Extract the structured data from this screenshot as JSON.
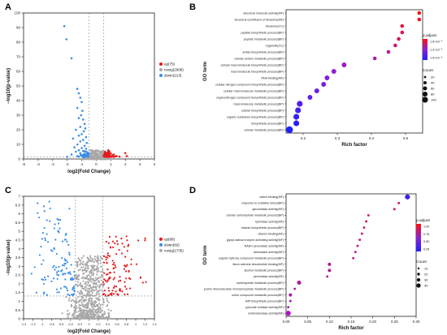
{
  "panels": [
    {
      "id": "A",
      "letter": "A"
    },
    {
      "id": "B",
      "letter": "B"
    },
    {
      "id": "C",
      "letter": "C"
    },
    {
      "id": "D",
      "letter": "D"
    }
  ],
  "colors": {
    "up": "#e41a1c",
    "down": "#3a8ee6",
    "nosig": "#a8a8a8",
    "gradient_high": "#ff1010",
    "gradient_mid": "#9020d0",
    "gradient_low": "#2020ff"
  },
  "chart_data": [
    {
      "panel": "A",
      "type": "scatter",
      "title": "",
      "xlabel": "log2(Fold Change)",
      "ylabel": "−log10(p-value)",
      "xlim": [
        -5,
        4
      ],
      "ylim": [
        0,
        100
      ],
      "xticks": [
        "-5",
        "-4",
        "-3",
        "-2",
        "-1",
        "0",
        "1",
        "2",
        "3",
        "4"
      ],
      "yticks": [
        "0",
        "10",
        "20",
        "30",
        "40",
        "50",
        "60",
        "70",
        "80",
        "90",
        "100"
      ],
      "threshold_x": [
        -0.5,
        0.5
      ],
      "threshold_y": 1.3,
      "legend": [
        {
          "label": "up(75)",
          "color": "#e41a1c"
        },
        {
          "label": "nosig(2698)",
          "color": "#a8a8a8"
        },
        {
          "label": "down(213)",
          "color": "#3a8ee6"
        }
      ],
      "points": [
        [
          -2.2,
          91
        ],
        [
          -2.05,
          82
        ],
        [
          -1.7,
          69
        ],
        [
          -1.3,
          48
        ],
        [
          -1.2,
          45
        ],
        [
          -1.1,
          42
        ],
        [
          -1.0,
          39
        ],
        [
          -1.3,
          35
        ],
        [
          -0.95,
          33
        ],
        [
          -1.05,
          30
        ],
        [
          -1.2,
          28
        ],
        [
          -0.9,
          27
        ],
        [
          -0.8,
          24
        ],
        [
          -1.1,
          22
        ],
        [
          -0.75,
          21
        ],
        [
          -1.4,
          20
        ],
        [
          -0.85,
          19
        ],
        [
          -1.0,
          17
        ],
        [
          -1.2,
          16
        ],
        [
          -0.7,
          15
        ],
        [
          -1.6,
          14
        ],
        [
          -0.9,
          13
        ],
        [
          -1.1,
          12
        ],
        [
          -0.65,
          11
        ],
        [
          -1.3,
          10
        ],
        [
          -0.8,
          9
        ],
        [
          -1.5,
          8
        ],
        [
          -1.0,
          7.5
        ],
        [
          -0.7,
          7
        ],
        [
          -1.2,
          6
        ],
        [
          -0.9,
          5.5
        ],
        [
          -1.4,
          5
        ],
        [
          -0.6,
          4.5
        ],
        [
          -1.1,
          4
        ],
        [
          -0.8,
          3.5
        ],
        [
          -1.7,
          3
        ],
        [
          -0.7,
          3
        ],
        [
          -1.0,
          2.5
        ],
        [
          -1.3,
          2
        ],
        [
          -0.6,
          2
        ],
        [
          -0.9,
          1.8
        ],
        [
          -1.2,
          1.6
        ],
        [
          -0.55,
          1.5
        ],
        [
          -2.0,
          1.5
        ],
        [
          -0.75,
          1.4
        ],
        [
          0.6,
          5
        ],
        [
          0.8,
          4.5
        ],
        [
          0.7,
          4
        ],
        [
          1.0,
          3.8
        ],
        [
          0.65,
          3.5
        ],
        [
          0.9,
          3.2
        ],
        [
          1.2,
          3
        ],
        [
          0.55,
          3
        ],
        [
          0.75,
          2.8
        ],
        [
          1.1,
          2.5
        ],
        [
          0.6,
          2.4
        ],
        [
          0.85,
          2.2
        ],
        [
          1.4,
          2
        ],
        [
          0.7,
          2
        ],
        [
          0.95,
          1.9
        ],
        [
          1.3,
          1.8
        ],
        [
          0.58,
          1.7
        ],
        [
          1.6,
          1.6
        ],
        [
          0.8,
          1.6
        ],
        [
          1.05,
          1.5
        ],
        [
          0.62,
          1.5
        ],
        [
          0.9,
          1.4
        ],
        [
          1.2,
          1.4
        ],
        [
          2.0,
          4
        ],
        [
          2.1,
          2
        ],
        [
          -0.3,
          1.2
        ],
        [
          0.1,
          1.0
        ],
        [
          -0.2,
          0.8
        ],
        [
          0.3,
          0.6
        ],
        [
          0.0,
          0.4
        ],
        [
          -0.4,
          0.9
        ],
        [
          0.2,
          0.3
        ],
        [
          -0.1,
          0.5
        ],
        [
          0.4,
          1.1
        ],
        [
          -0.35,
          0.2
        ],
        [
          0.15,
          0.7
        ],
        [
          -0.25,
          1.1
        ],
        [
          0.35,
          0.4
        ],
        [
          -0.05,
          0.2
        ],
        [
          0.25,
          0.9
        ],
        [
          -0.45,
          0.6
        ],
        [
          0.05,
          1.2
        ],
        [
          -0.15,
          0.3
        ],
        [
          0.45,
          0.8
        ],
        [
          0.0,
          0.9
        ]
      ]
    },
    {
      "panel": "B",
      "type": "scatter",
      "title": "",
      "xlabel": "Rich factor",
      "ylabel": "GO term",
      "xlim": [
        0.15,
        0.55
      ],
      "xticks": [
        "0.2",
        "0.3",
        "0.4",
        "0.5"
      ],
      "legend_gradient_title": "p.adjust",
      "legend_gradient_labels": [
        "1.6×10⁻⁹",
        "1.2×10⁻⁹",
        "1.0×10⁻⁹"
      ],
      "legend_size_title": "Count",
      "legend_size_labels": [
        "20",
        "40",
        "60",
        "80",
        "100"
      ],
      "terms": [
        {
          "label": "structural molecule activity(MF)",
          "x": 0.54,
          "size": 2
        },
        {
          "label": "structural constituent of ribosome(MF)",
          "x": 0.54,
          "size": 2
        },
        {
          "label": "ribosome(CC)",
          "x": 0.49,
          "size": 2
        },
        {
          "label": "peptide biosynthetic process(BP)",
          "x": 0.49,
          "size": 2
        },
        {
          "label": "peptide metabolic process(BP)",
          "x": 0.48,
          "size": 2
        },
        {
          "label": "organelle(CC)",
          "x": 0.47,
          "size": 2
        },
        {
          "label": "amide biosynthetic process(BP)",
          "x": 0.45,
          "size": 2
        },
        {
          "label": "cellular protein metabolic process(BP)",
          "x": 0.41,
          "size": 2
        },
        {
          "label": "cellular macromolecule biosynthetic process(BP)",
          "x": 0.32,
          "size": 3
        },
        {
          "label": "macromolecule biosynthetic process(BP)",
          "x": 0.29,
          "size": 3
        },
        {
          "label": "RNA binding(MF)",
          "x": 0.27,
          "size": 3
        },
        {
          "label": "cellular nitrogen compound biosynthetic process(BP)",
          "x": 0.26,
          "size": 3
        },
        {
          "label": "cellular macromolecule metabolic process(BP)",
          "x": 0.24,
          "size": 3
        },
        {
          "label": "organonitrogen compound biosynthetic process(BP)",
          "x": 0.22,
          "size": 3
        },
        {
          "label": "macromolecule metabolic process(BP)",
          "x": 0.19,
          "size": 4
        },
        {
          "label": "cellular biosynthetic process(BP)",
          "x": 0.185,
          "size": 4
        },
        {
          "label": "organic substance biosynthetic process(BP)",
          "x": 0.18,
          "size": 4
        },
        {
          "label": "biosynthetic process(BP)",
          "x": 0.18,
          "size": 4
        },
        {
          "label": "cellular metabolic process(BP)",
          "x": 0.16,
          "size": 5
        }
      ]
    },
    {
      "panel": "C",
      "type": "scatter",
      "title": "",
      "xlabel": "log2(Fold Change)",
      "ylabel": "−log10(p-value)",
      "xlim": [
        -1.4,
        1.4
      ],
      "ylim": [
        0,
        7
      ],
      "xticks": [
        "-1.4",
        "-1.2",
        "-1",
        "-0.8",
        "-0.6",
        "-0.4",
        "-0.2",
        "0",
        "0.2",
        "0.4",
        "0.6",
        "0.8",
        "1",
        "1.2",
        "1.4"
      ],
      "yticks": [
        "0",
        "0.5",
        "1",
        "1.5",
        "2",
        "2.5",
        "3",
        "3.5",
        "4",
        "4.5",
        "5",
        "5.5",
        "6",
        "6.5",
        "7"
      ],
      "threshold_x": [
        -0.3,
        0.3
      ],
      "threshold_y": 1.3,
      "legend": [
        {
          "label": "up(88)",
          "color": "#e41a1c"
        },
        {
          "label": "down(92)",
          "color": "#3a8ee6"
        },
        {
          "label": "nosig(1735)",
          "color": "#a8a8a8"
        }
      ],
      "points": []
    },
    {
      "panel": "D",
      "type": "scatter",
      "title": "",
      "xlabel": "Rich factor",
      "ylabel": "GO term",
      "xlim": [
        0.0,
        0.3
      ],
      "xticks": [
        "0.00",
        "0.05",
        "0.10",
        "0.15",
        "0.20",
        "0.25",
        "0.30"
      ],
      "legend_gradient_title": "p.adjust",
      "legend_gradient_labels": [
        "1.00",
        "0.75",
        "0.50",
        "0.25"
      ],
      "legend_size_title": "Count",
      "legend_size_labels": [
        "10",
        "20",
        "30",
        "40"
      ],
      "terms": [
        {
          "label": "cation binding(MF)",
          "x": 0.28,
          "size": 4
        },
        {
          "label": "response to oxidative stress(BP)",
          "x": 0.26,
          "size": 1
        },
        {
          "label": "glucosidase activity(MF)",
          "x": 0.25,
          "size": 1
        },
        {
          "label": "cellular carbohydrate metabolic process(BP)",
          "x": 0.19,
          "size": 1
        },
        {
          "label": "hydrolase activity(MF)",
          "x": 0.185,
          "size": 1
        },
        {
          "label": "vitamin biosynthetic process(BP)",
          "x": 0.18,
          "size": 1
        },
        {
          "label": "vitamin binding(MF)",
          "x": 0.175,
          "size": 1
        },
        {
          "label": "glycyl-radical enzyme activating activity(MF)",
          "x": 0.17,
          "size": 1
        },
        {
          "label": "NADH peroxidase activity(MF)",
          "x": 0.165,
          "size": 1
        },
        {
          "label": "antioxidant activity(MF)",
          "x": 0.16,
          "size": 1
        },
        {
          "label": "organic hydroxy compound metabolic process(BP)",
          "x": 0.155,
          "size": 1
        },
        {
          "label": "flavin adenine dinucleotide binding(MF)",
          "x": 0.1,
          "size": 2
        },
        {
          "label": "alcohol metabolic process(BP)",
          "x": 0.1,
          "size": 2
        },
        {
          "label": "peroxidase activity(MF)",
          "x": 0.095,
          "size": 1
        },
        {
          "label": "carbohydrate metabolic process(BP)",
          "x": 0.03,
          "size": 3
        },
        {
          "label": "purine ribonucleoside monophosphate metabolic process(BP)",
          "x": 0.02,
          "size": 1
        },
        {
          "label": "sulfur compound metabolic process(BP)",
          "x": 0.01,
          "size": 2
        },
        {
          "label": "IMP biosynthetic process(BP)",
          "x": 0.01,
          "size": 1
        },
        {
          "label": "pyruvate oxidase activity(MF)",
          "x": 0.005,
          "size": 1
        },
        {
          "label": "oxidoreductase activity(MF)",
          "x": 0.005,
          "size": 4
        }
      ]
    }
  ]
}
